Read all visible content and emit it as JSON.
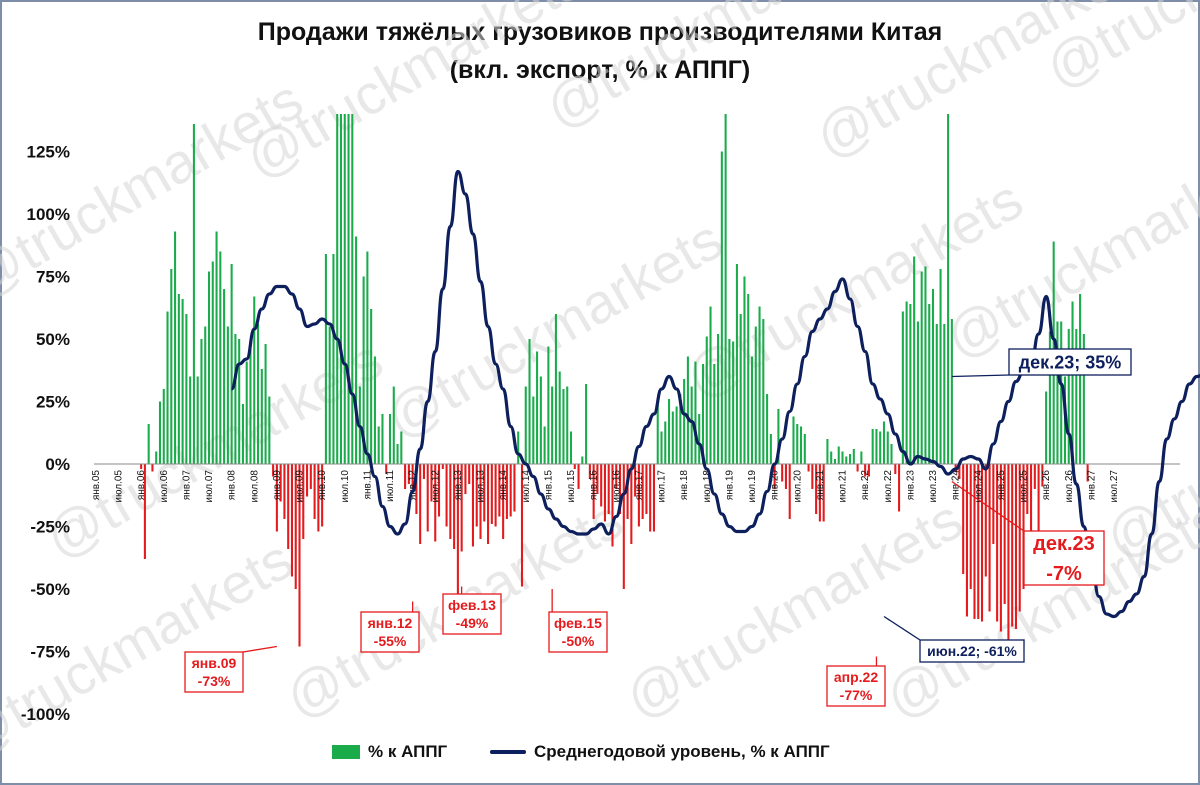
{
  "title_line1": "Продажи тяжёлых грузовиков производителями Китая",
  "title_line2": "(вкл. экспорт, % к АППГ)",
  "watermark": "@truckmarkets",
  "legend": {
    "bars": "% к АППГ",
    "line": "Среднегодовой уровень, % к АППГ"
  },
  "colors": {
    "positive": "#1aab4b",
    "negative": "#e41a1c",
    "line": "#0d1f5c"
  },
  "chart_data": {
    "type": "bar",
    "ylim": [
      -1.0,
      1.4
    ],
    "y_ticks": [
      -1.0,
      -0.75,
      -0.5,
      -0.25,
      0.0,
      0.25,
      0.5,
      0.75,
      1.0,
      1.25
    ],
    "y_tick_labels": [
      "-100%",
      "-75%",
      "-50%",
      "-25%",
      "0%",
      "25%",
      "50%",
      "75%",
      "100%",
      "125%"
    ],
    "x_tick_labels": [
      "янв.05",
      "июл.05",
      "янв.06",
      "июл.06",
      "янв.07",
      "июл.07",
      "янв.08",
      "июл.08",
      "янв.09",
      "июл.09",
      "янв.10",
      "июл.10",
      "янв.11",
      "июл.11",
      "янв.12",
      "июл.12",
      "янв.13",
      "июл.13",
      "янв.14",
      "июл.14",
      "янв.15",
      "июл.15",
      "янв.16",
      "июл.16",
      "янв.17",
      "июл.17",
      "янв.18",
      "июл.18",
      "янв.19",
      "июл.19",
      "янв.20",
      "июл.20",
      "янв.21",
      "июл.21",
      "янв.22",
      "июл.22",
      "янв.23",
      "июл.23",
      "янв.24",
      "июл.24",
      "янв.25",
      "июл.25",
      "янв.26",
      "июл.26",
      "янв.27",
      "июл.27"
    ],
    "start_month": "янв.05",
    "series": [
      {
        "name": "% к АППГ",
        "type": "bar",
        "values": [
          null,
          null,
          null,
          null,
          null,
          null,
          null,
          null,
          null,
          null,
          null,
          null,
          -0.02,
          -0.38,
          0.16,
          -0.03,
          0.05,
          0.25,
          0.3,
          0.61,
          0.78,
          0.93,
          0.68,
          0.66,
          0.6,
          0.35,
          1.36,
          0.35,
          0.5,
          0.55,
          0.77,
          0.81,
          0.93,
          0.85,
          0.7,
          0.55,
          0.8,
          0.52,
          0.5,
          0.24,
          0.41,
          0.47,
          0.67,
          0.56,
          0.38,
          0.48,
          0.27,
          -0.05,
          -0.27,
          -0.15,
          -0.22,
          -0.34,
          -0.45,
          -0.5,
          -0.73,
          -0.3,
          -0.13,
          -0.1,
          -0.22,
          -0.27,
          -0.25,
          0.84,
          0.55,
          0.84,
          1.4,
          1.4,
          1.4,
          1.4,
          1.4,
          0.91,
          0.31,
          0.75,
          0.85,
          0.62,
          0.43,
          0.15,
          0.2,
          -0.04,
          0.2,
          0.31,
          0.08,
          0.13,
          -0.1,
          -0.08,
          -0.1,
          -0.2,
          -0.32,
          -0.06,
          -0.27,
          -0.15,
          -0.31,
          -0.21,
          -0.02,
          -0.25,
          -0.3,
          -0.34,
          -0.55,
          -0.35,
          -0.12,
          -0.08,
          -0.33,
          -0.25,
          -0.3,
          -0.23,
          -0.32,
          -0.24,
          -0.25,
          -0.21,
          -0.3,
          -0.22,
          -0.21,
          -0.19,
          0.13,
          -0.49,
          0.31,
          0.5,
          0.27,
          0.45,
          0.35,
          0.15,
          0.47,
          0.31,
          0.6,
          0.37,
          0.3,
          0.31,
          0.13,
          -0.02,
          -0.1,
          0.03,
          0.32,
          -0.06,
          -0.22,
          -0.12,
          -0.17,
          -0.23,
          -0.2,
          -0.33,
          -0.1,
          -0.2,
          -0.5,
          -0.22,
          -0.32,
          -0.13,
          -0.25,
          -0.22,
          -0.2,
          -0.27,
          -0.27,
          0.26,
          0.13,
          0.17,
          0.26,
          0.21,
          0.23,
          0.28,
          0.34,
          0.43,
          0.31,
          0.41,
          0.2,
          0.4,
          0.51,
          0.63,
          0.4,
          0.52,
          1.25,
          1.4,
          0.5,
          0.49,
          0.8,
          0.6,
          0.75,
          0.68,
          0.43,
          0.55,
          0.63,
          0.58,
          0.28,
          0.12,
          -0.1,
          0.22,
          -0.07,
          -0.1,
          -0.22,
          0.19,
          0.16,
          0.15,
          0.12,
          -0.03,
          -0.1,
          -0.2,
          -0.23,
          -0.23,
          0.1,
          0.05,
          0.02,
          0.07,
          0.05,
          0.03,
          0.04,
          0.06,
          -0.03,
          0.05,
          -0.05,
          -0.05,
          0.14,
          0.14,
          0.13,
          0.17,
          0.13,
          0.08,
          -0.04,
          -0.19,
          0.61,
          0.65,
          0.64,
          0.83,
          0.57,
          0.77,
          0.79,
          0.64,
          0.7,
          0.56,
          0.78,
          0.56,
          1.4,
          0.58,
          -0.03,
          -0.06,
          -0.44,
          -0.61,
          -0.5,
          -0.62,
          -0.62,
          -0.63,
          -0.45,
          -0.59,
          -0.32,
          -0.63,
          -0.67,
          -0.56,
          -0.77,
          -0.65,
          -0.66,
          -0.59,
          -0.5,
          -0.2,
          -0.37,
          -0.1,
          -0.48,
          -0.09,
          0.29,
          0.53,
          0.89,
          0.57,
          0.57,
          0.35,
          0.54,
          0.65,
          0.54,
          0.68,
          0.52,
          -0.07
        ]
      },
      {
        "name": "Среднегодовой уровень, % к АППГ",
        "type": "line",
        "points": [
          [
            36,
            0.3
          ],
          [
            38,
            0.4
          ],
          [
            40,
            0.42
          ],
          [
            42,
            0.54
          ],
          [
            44,
            0.62
          ],
          [
            46,
            0.68
          ],
          [
            48,
            0.71
          ],
          [
            50,
            0.71
          ],
          [
            52,
            0.68
          ],
          [
            54,
            0.62
          ],
          [
            56,
            0.55
          ],
          [
            58,
            0.56
          ],
          [
            60,
            0.58
          ],
          [
            62,
            0.56
          ],
          [
            64,
            0.5
          ],
          [
            66,
            0.4
          ],
          [
            68,
            0.28
          ],
          [
            70,
            0.15
          ],
          [
            72,
            0.04
          ],
          [
            74,
            -0.05
          ],
          [
            76,
            -0.17
          ],
          [
            78,
            -0.25
          ],
          [
            80,
            -0.28
          ],
          [
            82,
            -0.24
          ],
          [
            84,
            -0.11
          ],
          [
            86,
            0.06
          ],
          [
            88,
            0.25
          ],
          [
            90,
            0.45
          ],
          [
            92,
            0.7
          ],
          [
            94,
            0.95
          ],
          [
            96,
            1.17
          ],
          [
            98,
            1.08
          ],
          [
            100,
            0.92
          ],
          [
            102,
            0.73
          ],
          [
            104,
            0.55
          ],
          [
            106,
            0.4
          ],
          [
            108,
            0.3
          ],
          [
            110,
            0.15
          ],
          [
            112,
            0.04
          ],
          [
            114,
            0.0
          ],
          [
            116,
            -0.05
          ],
          [
            118,
            -0.12
          ],
          [
            120,
            -0.18
          ],
          [
            122,
            -0.22
          ],
          [
            124,
            -0.25
          ],
          [
            126,
            -0.27
          ],
          [
            128,
            -0.28
          ],
          [
            130,
            -0.28
          ],
          [
            132,
            -0.26
          ],
          [
            134,
            -0.24
          ],
          [
            136,
            -0.28
          ],
          [
            138,
            -0.21
          ],
          [
            140,
            -0.12
          ],
          [
            142,
            -0.02
          ],
          [
            144,
            0.07
          ],
          [
            146,
            0.15
          ],
          [
            148,
            0.2
          ],
          [
            150,
            0.3
          ],
          [
            152,
            0.35
          ],
          [
            154,
            0.3
          ],
          [
            156,
            0.2
          ],
          [
            158,
            0.17
          ],
          [
            160,
            0.08
          ],
          [
            162,
            -0.02
          ],
          [
            164,
            -0.12
          ],
          [
            166,
            -0.2
          ],
          [
            168,
            -0.25
          ],
          [
            170,
            -0.27
          ],
          [
            172,
            -0.27
          ],
          [
            174,
            -0.25
          ],
          [
            176,
            -0.2
          ],
          [
            178,
            -0.11
          ],
          [
            180,
            0.0
          ],
          [
            182,
            0.1
          ],
          [
            184,
            0.21
          ],
          [
            186,
            0.32
          ],
          [
            188,
            0.43
          ],
          [
            190,
            0.53
          ],
          [
            192,
            0.58
          ],
          [
            194,
            0.62
          ],
          [
            196,
            0.69
          ],
          [
            198,
            0.74
          ],
          [
            200,
            0.66
          ],
          [
            202,
            0.55
          ],
          [
            204,
            0.45
          ],
          [
            206,
            0.32
          ],
          [
            208,
            0.26
          ],
          [
            210,
            0.2
          ],
          [
            212,
            0.12
          ],
          [
            214,
            0.05
          ],
          [
            216,
            0.0
          ],
          [
            218,
            0.03
          ],
          [
            220,
            0.02
          ],
          [
            222,
            0.01
          ],
          [
            224,
            -0.01
          ],
          [
            226,
            -0.04
          ],
          [
            228,
            -0.02
          ],
          [
            230,
            0.02
          ],
          [
            232,
            0.03
          ],
          [
            234,
            0.02
          ],
          [
            236,
            -0.02
          ],
          [
            238,
            0.08
          ],
          [
            240,
            0.17
          ],
          [
            242,
            0.25
          ],
          [
            244,
            0.33
          ],
          [
            246,
            0.37
          ],
          [
            248,
            0.4
          ],
          [
            250,
            0.52
          ],
          [
            252,
            0.67
          ],
          [
            254,
            0.5
          ],
          [
            256,
            0.32
          ],
          [
            258,
            0.12
          ],
          [
            260,
            -0.08
          ],
          [
            262,
            -0.25
          ],
          [
            264,
            -0.4
          ],
          [
            266,
            -0.53
          ],
          [
            268,
            -0.6
          ],
          [
            270,
            -0.61
          ],
          [
            272,
            -0.59
          ],
          [
            274,
            -0.55
          ],
          [
            276,
            -0.52
          ],
          [
            278,
            -0.45
          ],
          [
            280,
            -0.28
          ],
          [
            282,
            -0.07
          ],
          [
            284,
            0.1
          ],
          [
            286,
            0.18
          ],
          [
            288,
            0.25
          ],
          [
            290,
            0.32
          ],
          [
            292,
            0.35
          ],
          [
            294,
            0.36
          ]
        ]
      }
    ],
    "annotations": [
      {
        "label_line1": "янв.09",
        "label_line2": "-73%",
        "x": 48,
        "y": -0.73,
        "style": "red"
      },
      {
        "label_line1": "янв.12",
        "label_line2": "-55%",
        "x": 84,
        "y": -0.55,
        "style": "red"
      },
      {
        "label_line1": "фев.13",
        "label_line2": "-49%",
        "x": 97,
        "y": -0.49,
        "style": "red"
      },
      {
        "label_line1": "фев.15",
        "label_line2": "-50%",
        "x": 121,
        "y": -0.5,
        "style": "red"
      },
      {
        "label_line1": "апр.22",
        "label_line2": "-77%",
        "x": 207,
        "y": -0.77,
        "style": "red"
      },
      {
        "label_line1": "дек.23",
        "label_line2": "-7%",
        "x": 227,
        "y": -0.07,
        "style": "red-big"
      },
      {
        "label_line1": "июн.22; -61%",
        "label_line2": "",
        "x": 209,
        "y": -0.61,
        "style": "blue"
      },
      {
        "label_line1": "дек.23; 35%",
        "label_line2": "",
        "x": 227,
        "y": 0.35,
        "style": "blue-big"
      }
    ]
  }
}
